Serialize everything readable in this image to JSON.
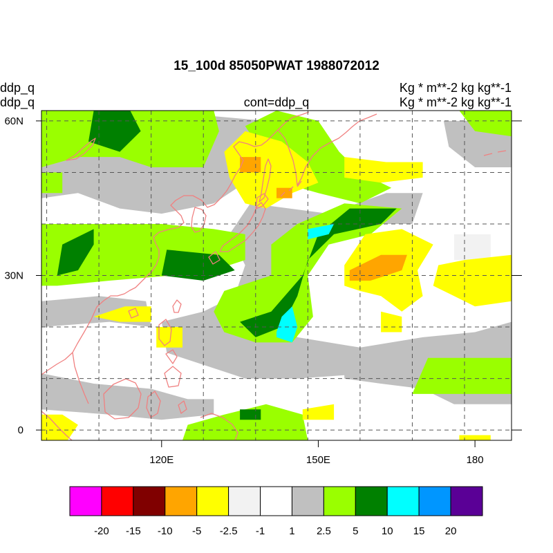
{
  "figure": {
    "title": "15_100d 85050PWAT  1988072012",
    "left_labels": [
      "ddp_q",
      "ddp_q"
    ],
    "center_label": "cont=ddp_q",
    "right_labels": [
      "Kg  * m**-2 kg kg**-1",
      "Kg  * m**-2 kg kg**-1"
    ]
  },
  "map": {
    "lon_range": [
      97,
      187
    ],
    "lat_range": [
      -2,
      62
    ],
    "lat_ticks": [
      {
        "value": 60,
        "label": "60N"
      },
      {
        "value": 30,
        "label": "30N"
      },
      {
        "value": 0,
        "label": "0"
      }
    ],
    "lon_ticks": [
      {
        "value": 120,
        "label": "120E"
      },
      {
        "value": 150,
        "label": "150E"
      },
      {
        "value": 180,
        "label": "180"
      }
    ],
    "grid_lon": [
      98,
      108,
      118,
      128,
      138,
      148,
      158,
      168,
      178
    ],
    "grid_lat": [
      0,
      10,
      20,
      30,
      40,
      50,
      60
    ],
    "coastline_color": "#f08080",
    "grid_color": "#555555",
    "background_fill": "#ffffff"
  },
  "colorbar": {
    "colors": [
      "#ff00ff",
      "#ff0000",
      "#800000",
      "#ffa500",
      "#ffff00",
      "#f2f2f2",
      "#ffffff",
      "#c0c0c0",
      "#9aff00",
      "#008000",
      "#00ffff",
      "#0096ff",
      "#5a0096"
    ],
    "labels": [
      "-20",
      "-15",
      "-10",
      "-5",
      "-2.5",
      "-1",
      "1",
      "2.5",
      "5",
      "10",
      "15",
      "20"
    ]
  },
  "chart_data": {
    "type": "heatmap",
    "title": "15_100d 85050PWAT  1988072012",
    "variable": "ddp_q",
    "units": "Kg  * m**-2 kg kg**-1",
    "levels": [
      -20,
      -15,
      -10,
      -5,
      -2.5,
      -1,
      1,
      2.5,
      5,
      10,
      15,
      20
    ],
    "x_range": [
      97,
      187
    ],
    "y_range": [
      -2,
      62
    ],
    "regions": [
      {
        "level_bin": "-1..1",
        "polygon": [
          [
            97,
            62
          ],
          [
            187,
            62
          ],
          [
            187,
            -2
          ],
          [
            97,
            -2
          ]
        ]
      },
      {
        "level_bin": "1..2.5",
        "polygon": [
          [
            97,
            45
          ],
          [
            104,
            46
          ],
          [
            112,
            43
          ],
          [
            120,
            42
          ],
          [
            130,
            44
          ],
          [
            136,
            48
          ],
          [
            141,
            55
          ],
          [
            140,
            60
          ],
          [
            118,
            62
          ],
          [
            97,
            62
          ]
        ]
      },
      {
        "level_bin": "1..2.5",
        "polygon": [
          [
            137,
            44
          ],
          [
            152,
            42
          ],
          [
            163,
            46
          ],
          [
            170,
            46
          ],
          [
            168,
            40
          ],
          [
            157,
            40
          ],
          [
            149,
            38
          ],
          [
            143,
            33
          ],
          [
            142,
            24
          ],
          [
            146,
            18
          ],
          [
            158,
            16
          ],
          [
            170,
            18
          ],
          [
            180,
            19
          ],
          [
            187,
            21
          ],
          [
            187,
            13
          ],
          [
            170,
            11
          ],
          [
            160,
            11
          ],
          [
            146,
            10
          ],
          [
            136,
            10
          ],
          [
            127,
            13
          ],
          [
            121,
            15
          ],
          [
            120,
            21
          ],
          [
            128,
            23
          ],
          [
            134,
            26
          ],
          [
            136,
            32
          ],
          [
            133,
            38
          ]
        ]
      },
      {
        "level_bin": "1..2.5",
        "polygon": [
          [
            97,
            20
          ],
          [
            110,
            21
          ],
          [
            118,
            20
          ],
          [
            117,
            25
          ],
          [
            108,
            26
          ],
          [
            97,
            25
          ]
        ]
      },
      {
        "level_bin": "1..2.5",
        "polygon": [
          [
            155,
            16
          ],
          [
            165,
            14
          ],
          [
            175,
            16
          ],
          [
            187,
            16
          ],
          [
            187,
            5
          ],
          [
            176,
            5
          ],
          [
            170,
            8
          ],
          [
            162,
            9
          ],
          [
            155,
            10
          ]
        ]
      },
      {
        "level_bin": "1..2.5",
        "polygon": [
          [
            174,
            60
          ],
          [
            187,
            60
          ],
          [
            187,
            51
          ],
          [
            180,
            51
          ],
          [
            175,
            55
          ]
        ]
      },
      {
        "level_bin": "1..2.5",
        "polygon": [
          [
            97,
            11
          ],
          [
            107,
            9
          ],
          [
            118,
            8
          ],
          [
            125,
            6
          ],
          [
            130,
            6
          ],
          [
            130,
            3
          ],
          [
            120,
            2
          ],
          [
            110,
            3
          ],
          [
            97,
            4
          ]
        ]
      },
      {
        "level_bin": "-2.5..-1",
        "polygon": [
          [
            176,
            38
          ],
          [
            183,
            38
          ],
          [
            183,
            33
          ],
          [
            176,
            33
          ]
        ]
      },
      {
        "level_bin": "-2.5..-1",
        "polygon": [
          [
            103,
            36
          ],
          [
            112,
            36
          ],
          [
            112,
            31
          ],
          [
            103,
            31
          ]
        ]
      },
      {
        "level_bin": "2.5..5",
        "polygon": [
          [
            97,
            62
          ],
          [
            130,
            62
          ],
          [
            131,
            58
          ],
          [
            128,
            51
          ],
          [
            118,
            51
          ],
          [
            112,
            53
          ],
          [
            104,
            53
          ],
          [
            97,
            51
          ]
        ]
      },
      {
        "level_bin": "2.5..5",
        "polygon": [
          [
            97,
            40
          ],
          [
            112,
            40
          ],
          [
            120,
            40
          ],
          [
            130,
            39
          ],
          [
            136,
            38
          ],
          [
            136,
            33
          ],
          [
            130,
            31
          ],
          [
            122,
            30
          ],
          [
            110,
            29
          ],
          [
            100,
            28
          ],
          [
            97,
            28
          ]
        ]
      },
      {
        "level_bin": "2.5..5",
        "polygon": [
          [
            132,
            27
          ],
          [
            141,
            30
          ],
          [
            141,
            36
          ],
          [
            146,
            40
          ],
          [
            155,
            44
          ],
          [
            166,
            43
          ],
          [
            160,
            38
          ],
          [
            152,
            36
          ],
          [
            148,
            30
          ],
          [
            149,
            22
          ],
          [
            145,
            17
          ],
          [
            138,
            17
          ],
          [
            132,
            19
          ],
          [
            130,
            23
          ]
        ]
      },
      {
        "level_bin": "2.5..5",
        "polygon": [
          [
            168,
            7
          ],
          [
            187,
            7
          ],
          [
            187,
            14
          ],
          [
            171,
            14
          ]
        ]
      },
      {
        "level_bin": "2.5..5",
        "polygon": [
          [
            125,
            1
          ],
          [
            132,
            3
          ],
          [
            140,
            5
          ],
          [
            147,
            3
          ],
          [
            148,
            -2
          ],
          [
            124,
            -2
          ]
        ]
      },
      {
        "level_bin": "2.5..5",
        "polygon": [
          [
            136,
            59
          ],
          [
            142,
            62
          ],
          [
            150,
            60
          ],
          [
            154,
            54
          ],
          [
            158,
            50
          ],
          [
            164,
            47
          ],
          [
            158,
            44
          ],
          [
            150,
            46
          ],
          [
            143,
            48
          ]
        ]
      },
      {
        "level_bin": "2.5..5",
        "polygon": [
          [
            177,
            62
          ],
          [
            187,
            62
          ],
          [
            187,
            57
          ],
          [
            180,
            58
          ]
        ]
      },
      {
        "level_bin": "2.5..5",
        "polygon": [
          [
            97,
            50
          ],
          [
            101,
            50
          ],
          [
            101,
            46
          ],
          [
            97,
            46
          ]
        ]
      },
      {
        "level_bin": "5..10",
        "polygon": [
          [
            107,
            62
          ],
          [
            114,
            62
          ],
          [
            116,
            58
          ],
          [
            112,
            54
          ],
          [
            106,
            56
          ]
        ]
      },
      {
        "level_bin": "5..10",
        "polygon": [
          [
            100,
            30
          ],
          [
            104,
            31
          ],
          [
            107,
            36
          ],
          [
            107,
            39
          ],
          [
            101,
            36
          ]
        ]
      },
      {
        "level_bin": "5..10",
        "polygon": [
          [
            121,
            35
          ],
          [
            131,
            34
          ],
          [
            134,
            31
          ],
          [
            128,
            29
          ],
          [
            120,
            30
          ]
        ]
      },
      {
        "level_bin": "5..10",
        "polygon": [
          [
            141,
            23
          ],
          [
            147,
            30
          ],
          [
            150,
            38
          ],
          [
            156,
            43
          ],
          [
            165,
            43
          ],
          [
            162,
            40
          ],
          [
            153,
            38
          ],
          [
            148,
            33
          ],
          [
            146,
            26
          ],
          [
            143,
            20
          ],
          [
            138,
            18
          ],
          [
            135,
            21
          ]
        ]
      },
      {
        "level_bin": "5..10",
        "polygon": [
          [
            135,
            4
          ],
          [
            139,
            4
          ],
          [
            139,
            2
          ],
          [
            135,
            2
          ]
        ]
      },
      {
        "level_bin": "10..15",
        "polygon": [
          [
            148,
            39
          ],
          [
            153,
            40
          ],
          [
            152,
            38
          ],
          [
            148,
            37
          ]
        ]
      },
      {
        "level_bin": "10..15",
        "polygon": [
          [
            142,
            19
          ],
          [
            143,
            22
          ],
          [
            145,
            24
          ],
          [
            146,
            20
          ],
          [
            145,
            17
          ],
          [
            142,
            18
          ]
        ]
      },
      {
        "level_bin": "-5..-2.5",
        "polygon": [
          [
            132,
            54
          ],
          [
            136,
            58
          ],
          [
            143,
            56
          ],
          [
            148,
            52
          ],
          [
            150,
            48
          ],
          [
            145,
            46
          ],
          [
            140,
            43
          ],
          [
            136,
            44
          ],
          [
            133,
            49
          ]
        ]
      },
      {
        "level_bin": "-5..-2.5",
        "polygon": [
          [
            155,
            32
          ],
          [
            159,
            38
          ],
          [
            166,
            39
          ],
          [
            172,
            36
          ],
          [
            169,
            31
          ],
          [
            170,
            26
          ],
          [
            166,
            23
          ],
          [
            162,
            26
          ],
          [
            158,
            27
          ],
          [
            155,
            28
          ]
        ]
      },
      {
        "level_bin": "-5..-2.5",
        "polygon": [
          [
            173,
            32
          ],
          [
            178,
            33
          ],
          [
            187,
            34
          ],
          [
            187,
            25
          ],
          [
            180,
            24
          ],
          [
            176,
            26
          ],
          [
            172,
            28
          ]
        ]
      },
      {
        "level_bin": "-5..-2.5",
        "polygon": [
          [
            155,
            53
          ],
          [
            163,
            52
          ],
          [
            170,
            52
          ],
          [
            170,
            49
          ],
          [
            162,
            48
          ],
          [
            155,
            49
          ]
        ]
      },
      {
        "level_bin": "-5..-2.5",
        "polygon": [
          [
            162,
            23
          ],
          [
            166,
            22
          ],
          [
            166,
            19
          ],
          [
            162,
            19
          ]
        ]
      },
      {
        "level_bin": "-5..-2.5",
        "polygon": [
          [
            97,
            3
          ],
          [
            101,
            3
          ],
          [
            104,
            1
          ],
          [
            102,
            -2
          ],
          [
            97,
            -2
          ]
        ]
      },
      {
        "level_bin": "-5..-2.5",
        "polygon": [
          [
            107,
            22
          ],
          [
            113,
            24
          ],
          [
            118,
            24
          ],
          [
            118,
            21
          ],
          [
            112,
            21
          ]
        ]
      },
      {
        "level_bin": "-5..-2.5",
        "polygon": [
          [
            119,
            20
          ],
          [
            124,
            20
          ],
          [
            124,
            16
          ],
          [
            119,
            16
          ]
        ]
      },
      {
        "level_bin": "-5..-2.5",
        "polygon": [
          [
            147,
            4
          ],
          [
            153,
            5
          ],
          [
            153,
            2
          ],
          [
            147,
            2
          ]
        ]
      },
      {
        "level_bin": "-5..-2.5",
        "polygon": [
          [
            177,
            -1
          ],
          [
            183,
            -1
          ],
          [
            183,
            -2
          ],
          [
            177,
            -2
          ]
        ]
      },
      {
        "level_bin": "-10..-5",
        "polygon": [
          [
            135,
            53
          ],
          [
            139,
            53
          ],
          [
            139,
            50
          ],
          [
            135,
            50
          ]
        ]
      },
      {
        "level_bin": "-10..-5",
        "polygon": [
          [
            156,
            31
          ],
          [
            162,
            34
          ],
          [
            167,
            34
          ],
          [
            166,
            31
          ],
          [
            160,
            29
          ],
          [
            156,
            29
          ]
        ]
      },
      {
        "level_bin": "-10..-5",
        "polygon": [
          [
            142,
            47
          ],
          [
            145,
            47
          ],
          [
            145,
            45
          ],
          [
            142,
            45
          ]
        ]
      }
    ]
  }
}
